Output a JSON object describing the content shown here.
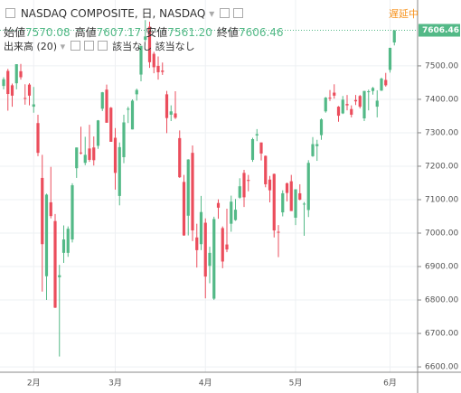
{
  "header": {
    "title": "NASDAQ COMPOSITE, 日, NASDAQ",
    "status": "遅延中",
    "ohlc": [
      {
        "label": "始値",
        "value": "7570.08"
      },
      {
        "label": "高値",
        "value": "7607.17"
      },
      {
        "label": "安値",
        "value": "7561.20"
      },
      {
        "label": "終値",
        "value": "7606.46"
      }
    ],
    "volume": "出来高 (20)",
    "na": [
      "該当なし",
      "該当なし"
    ]
  },
  "chart_data": {
    "type": "candlestick",
    "up_color": "#53b987",
    "down_color": "#eb4d5c",
    "grid": true,
    "ylim": [
      6584,
      7697
    ],
    "yticks": [
      {
        "value": 6600,
        "label": "6600.00"
      },
      {
        "value": 6700,
        "label": "6700.00"
      },
      {
        "value": 6800,
        "label": "6800.00"
      },
      {
        "value": 6900,
        "label": "6900.00"
      },
      {
        "value": 7000,
        "label": "7000.00"
      },
      {
        "value": 7100,
        "label": "7100.00"
      },
      {
        "value": 7200,
        "label": "7200.00"
      },
      {
        "value": 7300,
        "label": "7300.00"
      },
      {
        "value": 7400,
        "label": "7400.00"
      },
      {
        "value": 7500,
        "label": "7500.00"
      }
    ],
    "categories": [
      null,
      null,
      null,
      null,
      null,
      null,
      null,
      "2月",
      null,
      null,
      null,
      null,
      null,
      null,
      null,
      null,
      null,
      null,
      null,
      null,
      null,
      null,
      null,
      null,
      null,
      null,
      "3月",
      null,
      null,
      null,
      null,
      null,
      null,
      null,
      null,
      null,
      null,
      null,
      null,
      null,
      null,
      null,
      null,
      null,
      null,
      null,
      null,
      "4月",
      null,
      null,
      null,
      null,
      null,
      null,
      null,
      null,
      null,
      null,
      null,
      null,
      null,
      null,
      null,
      null,
      null,
      null,
      null,
      null,
      "5月",
      null,
      null,
      null,
      null,
      null,
      null,
      null,
      null,
      null,
      null,
      null,
      null,
      null,
      null,
      null,
      null,
      null,
      null,
      null,
      null,
      null,
      "6月",
      null
    ],
    "open": [
      7440,
      7485,
      7442,
      7448,
      7484,
      7404,
      7444,
      7378,
      7329,
      7165,
      6871,
      7092,
      7036,
      6868,
      6941,
      6941,
      6981,
      7194,
      7241,
      7210,
      7253,
      7256,
      7261,
      7372,
      7429,
      7375,
      7285,
      7111,
      7227,
      7369,
      7310,
      7415,
      7474,
      7578,
      7617,
      7536,
      7500,
      7486,
      7415,
      7354,
      7358,
      7284,
      7153,
      7052,
      7240,
      6987,
      6967,
      7031,
      6902,
      6804,
      7090,
      7015,
      6966,
      7028,
      7039,
      7106,
      7180,
      7159,
      7219,
      7292,
      7271,
      7231,
      7160,
      7177,
      7004,
      7062,
      7149,
      7155,
      7046,
      7119,
      7087,
      7069,
      7230,
      7260,
      7293,
      7364,
      7405,
      7420,
      7378,
      7358,
      7386,
      7371,
      7398,
      7410,
      7343,
      7424,
      7425,
      7378,
      7426,
      7458,
      7488,
      7570.08
    ],
    "high": [
      7466,
      7491,
      7447,
      7505,
      7506,
      7445,
      7448,
      7437,
      7354,
      7234,
      7118,
      7198,
      7057,
      6905,
      7023,
      7020,
      7149,
      7256,
      7318,
      7288,
      7324,
      7289,
      7338,
      7422,
      7444,
      7377,
      7314,
      7271,
      7354,
      7378,
      7400,
      7432,
      7560,
      7637,
      7632,
      7542,
      7528,
      7510,
      7425,
      7382,
      7424,
      7307,
      7174,
      7221,
      7262,
      7028,
      7111,
      7044,
      6959,
      7049,
      7101,
      7020,
      7073,
      7112,
      7102,
      7164,
      7189,
      7174,
      7285,
      7311,
      7271,
      7232,
      7171,
      7178,
      7024,
      7128,
      7151,
      7174,
      7131,
      7146,
      7093,
      7218,
      7287,
      7279,
      7343,
      7407,
      7428,
      7445,
      7380,
      7410,
      7413,
      7382,
      7413,
      7413,
      7425,
      7429,
      7437,
      7427,
      7465,
      7479,
      7554,
      7607.17
    ],
    "low": [
      7430,
      7366,
      7378,
      7430,
      7459,
      7384,
      7382,
      7360,
      7230,
      6825,
      6800,
      7044,
      6776,
      6631,
      6911,
      6929,
      6972,
      7165,
      7235,
      7203,
      7213,
      7202,
      7252,
      7365,
      7330,
      7273,
      7130,
      7083,
      7209,
      7329,
      7310,
      7396,
      7454,
      7573,
      7494,
      7478,
      7459,
      7473,
      7299,
      7335,
      7341,
      7165,
      6992,
      6993,
      6976,
      6897,
      6949,
      6805,
      6850,
      6800,
      7043,
      6895,
      6943,
      7004,
      7037,
      7103,
      7078,
      7125,
      7213,
      7275,
      7217,
      7137,
      7092,
      6987,
      6928,
      7050,
      7095,
      7066,
      7024,
      7098,
      6992,
      7048,
      7228,
      7216,
      7279,
      7360,
      7395,
      7402,
      7333,
      7356,
      7367,
      7346,
      7383,
      7373,
      7335,
      7367,
      7414,
      7346,
      7425,
      7438,
      7480,
      7561.2
    ],
    "close": [
      7460,
      7416,
      7411,
      7505,
      7466,
      7402,
      7411,
      7385,
      7240,
      6967,
      7115,
      7051,
      6777,
      6874,
      6981,
      7013,
      7143,
      7256,
      7239,
      7234,
      7219,
      7218,
      7337,
      7421,
      7330,
      7273,
      7180,
      7257,
      7331,
      7372,
      7396,
      7428,
      7560,
      7588,
      7511,
      7496,
      7481,
      7482,
      7344,
      7364,
      7345,
      7167,
      6993,
      7220,
      7008,
      6949,
      7063,
      6870,
      6941,
      7042,
      7076,
      6915,
      6951,
      7094,
      7070,
      7140,
      7107,
      7156,
      7281,
      7296,
      7238,
      7146,
      7128,
      7008,
      7003,
      7119,
      7120,
      7066,
      7131,
      7100,
      7088,
      7210,
      7266,
      7266,
      7340,
      7405,
      7403,
      7411,
      7351,
      7399,
      7382,
      7354,
      7394,
      7378,
      7425,
      7424,
      7434,
      7396,
      7462,
      7442,
      7554,
      7606.46
    ]
  }
}
